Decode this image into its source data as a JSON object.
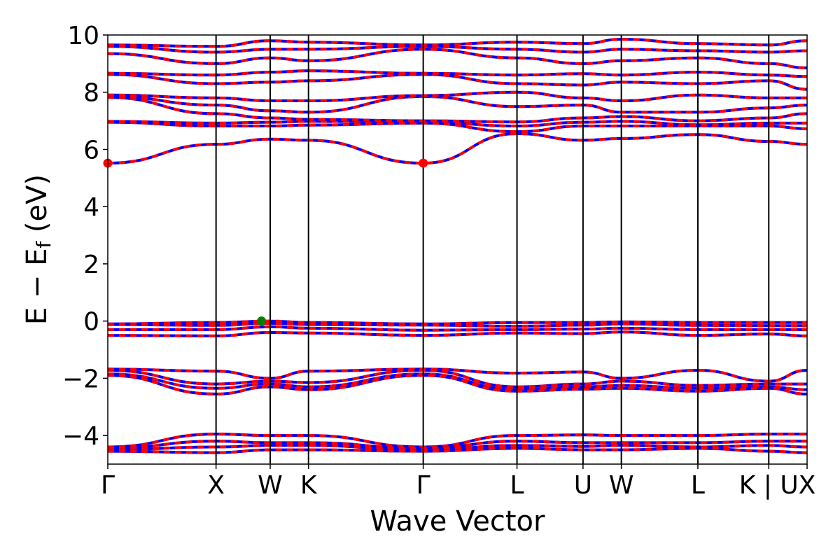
{
  "chart_data": {
    "type": "line",
    "xlabel": "Wave Vector",
    "ylabel": {
      "main": "E − E",
      "sub": "f",
      "unit": " (eV)"
    },
    "ylim": [
      -5,
      10
    ],
    "yticks": [
      {
        "value": 10,
        "label": "10"
      },
      {
        "value": 8,
        "label": "8"
      },
      {
        "value": 6,
        "label": "6"
      },
      {
        "value": 4,
        "label": "4"
      },
      {
        "value": 2,
        "label": "2"
      },
      {
        "value": 0,
        "label": "0"
      },
      {
        "value": -2,
        "label": "−2"
      },
      {
        "value": -4,
        "label": "−4"
      }
    ],
    "xlim": [
      0,
      6.46
    ],
    "kpoints": [
      {
        "label": "Γ",
        "x": 0.0
      },
      {
        "label": "X",
        "x": 1.0
      },
      {
        "label": "W",
        "x": 1.5
      },
      {
        "label": "K",
        "x": 1.854
      },
      {
        "label": "Γ",
        "x": 2.914
      },
      {
        "label": "L",
        "x": 3.78
      },
      {
        "label": "U",
        "x": 4.39
      },
      {
        "label": "W",
        "x": 4.744
      },
      {
        "label": "L",
        "x": 5.451
      },
      {
        "label": "K | U",
        "x": 6.106
      },
      {
        "label": "X",
        "x": 6.46
      }
    ],
    "grid": false,
    "colors": {
      "spin_up": "#0000ff",
      "spin_down": "#ff0000",
      "vbm": "#008000",
      "cbm": "#ff0000",
      "divider": "#000000"
    },
    "series": [
      {
        "x": [
          0,
          1,
          1.5,
          1.854,
          2.914,
          3.78,
          4.39,
          4.744,
          5.451,
          6.106,
          6.46
        ],
        "values": [
          5.52,
          6.18,
          6.36,
          6.32,
          5.52,
          6.55,
          6.32,
          6.38,
          6.52,
          6.28,
          6.18
        ]
      },
      {
        "x": [
          0,
          1,
          1.5,
          1.854,
          2.914,
          3.78,
          4.39,
          4.744,
          5.451,
          6.106,
          6.46
        ],
        "values": [
          6.95,
          6.82,
          6.82,
          6.85,
          6.92,
          6.62,
          6.82,
          6.82,
          6.82,
          6.82,
          6.72
        ]
      },
      {
        "x": [
          0,
          1,
          1.5,
          1.854,
          2.914,
          3.78,
          4.39,
          4.744,
          5.451,
          6.106,
          6.46
        ],
        "values": [
          6.98,
          6.92,
          6.95,
          6.98,
          6.96,
          6.82,
          6.95,
          6.98,
          6.86,
          6.92,
          6.92
        ]
      },
      {
        "x": [
          0,
          1,
          1.5,
          1.854,
          2.914,
          3.78,
          4.39,
          4.744,
          5.451,
          6.106,
          6.46
        ],
        "values": [
          7.82,
          7.25,
          7.1,
          7.05,
          7.0,
          6.96,
          7.1,
          7.15,
          7.0,
          7.1,
          7.25
        ]
      },
      {
        "x": [
          0,
          1,
          1.5,
          1.854,
          2.914,
          3.78,
          4.39,
          4.744,
          5.451,
          6.106,
          6.46
        ],
        "values": [
          7.86,
          7.55,
          7.35,
          7.3,
          7.85,
          7.5,
          7.55,
          7.3,
          7.3,
          7.45,
          7.55
        ]
      },
      {
        "x": [
          0,
          1,
          1.5,
          1.854,
          2.914,
          3.78,
          4.39,
          4.744,
          5.451,
          6.106,
          6.46
        ],
        "values": [
          7.9,
          7.8,
          7.7,
          7.7,
          7.88,
          8.0,
          7.8,
          7.7,
          7.9,
          7.8,
          7.8
        ]
      },
      {
        "x": [
          0,
          1,
          1.5,
          1.854,
          2.914,
          3.78,
          4.39,
          4.744,
          5.451,
          6.106,
          6.46
        ],
        "values": [
          8.62,
          8.3,
          8.35,
          8.4,
          8.62,
          8.3,
          8.25,
          8.35,
          8.3,
          8.4,
          8.1
        ]
      },
      {
        "x": [
          0,
          1,
          1.5,
          1.854,
          2.914,
          3.78,
          4.39,
          4.744,
          5.451,
          6.106,
          6.46
        ],
        "values": [
          8.66,
          8.6,
          8.7,
          8.75,
          8.66,
          8.6,
          8.65,
          8.6,
          8.7,
          8.6,
          8.55
        ]
      },
      {
        "x": [
          0,
          1,
          1.5,
          1.854,
          2.914,
          3.78,
          4.39,
          4.744,
          5.451,
          6.106,
          6.46
        ],
        "values": [
          9.35,
          9.0,
          9.2,
          9.1,
          9.5,
          9.2,
          9.0,
          9.1,
          9.2,
          9.0,
          8.85
        ]
      },
      {
        "x": [
          0,
          1,
          1.5,
          1.854,
          2.914,
          3.78,
          4.39,
          4.744,
          5.451,
          6.106,
          6.46
        ],
        "values": [
          9.6,
          9.4,
          9.5,
          9.5,
          9.6,
          9.5,
          9.4,
          9.5,
          9.45,
          9.4,
          9.45
        ]
      },
      {
        "x": [
          0,
          1,
          1.5,
          1.854,
          2.914,
          3.78,
          4.39,
          4.744,
          5.451,
          6.106,
          6.46
        ],
        "values": [
          9.65,
          9.6,
          9.8,
          9.75,
          9.65,
          9.75,
          9.7,
          9.85,
          9.7,
          9.65,
          9.8
        ]
      },
      {
        "x": [
          0,
          1,
          1.5,
          1.854,
          2.914,
          3.78,
          4.39,
          4.744,
          5.451,
          6.106,
          6.46
        ],
        "values": [
          -0.1,
          -0.05,
          0.0,
          -0.05,
          -0.1,
          -0.05,
          -0.05,
          -0.03,
          -0.05,
          -0.05,
          -0.05
        ]
      },
      {
        "x": [
          0,
          1,
          1.5,
          1.854,
          2.914,
          3.78,
          4.39,
          4.744,
          5.451,
          6.106,
          6.46
        ],
        "values": [
          -0.12,
          -0.15,
          -0.08,
          -0.12,
          -0.14,
          -0.18,
          -0.14,
          -0.1,
          -0.15,
          -0.16,
          -0.16
        ]
      },
      {
        "x": [
          0,
          1,
          1.5,
          1.854,
          2.914,
          3.78,
          4.39,
          4.744,
          5.451,
          6.106,
          6.46
        ],
        "values": [
          -0.3,
          -0.3,
          -0.2,
          -0.25,
          -0.32,
          -0.3,
          -0.28,
          -0.25,
          -0.3,
          -0.3,
          -0.3
        ]
      },
      {
        "x": [
          0,
          1,
          1.5,
          1.854,
          2.914,
          3.78,
          4.39,
          4.744,
          5.451,
          6.106,
          6.46
        ],
        "values": [
          -0.5,
          -0.52,
          -0.4,
          -0.42,
          -0.5,
          -0.42,
          -0.44,
          -0.38,
          -0.5,
          -0.45,
          -0.52
        ]
      },
      {
        "x": [
          0,
          1,
          1.5,
          1.854,
          2.914,
          3.78,
          4.39,
          4.744,
          5.451,
          6.106,
          6.46
        ],
        "values": [
          -1.68,
          -1.75,
          -2.0,
          -1.75,
          -1.68,
          -1.82,
          -1.78,
          -2.0,
          -1.72,
          -2.1,
          -1.72
        ]
      },
      {
        "x": [
          0,
          1,
          1.5,
          1.854,
          2.914,
          3.78,
          4.39,
          4.744,
          5.451,
          6.106,
          6.46
        ],
        "values": [
          -1.72,
          -2.2,
          -2.1,
          -2.15,
          -1.72,
          -2.3,
          -2.2,
          -2.1,
          -2.25,
          -2.2,
          -2.2
        ]
      },
      {
        "x": [
          0,
          1,
          1.5,
          1.854,
          2.914,
          3.78,
          4.39,
          4.744,
          5.451,
          6.106,
          6.46
        ],
        "values": [
          -1.85,
          -2.35,
          -2.2,
          -2.3,
          -1.85,
          -2.4,
          -2.3,
          -2.25,
          -2.35,
          -2.3,
          -2.4
        ]
      },
      {
        "x": [
          0,
          1,
          1.5,
          1.854,
          2.914,
          3.78,
          4.39,
          4.744,
          5.451,
          6.106,
          6.46
        ],
        "values": [
          -1.9,
          -2.55,
          -2.3,
          -2.4,
          -1.9,
          -2.45,
          -2.38,
          -2.35,
          -2.45,
          -2.35,
          -2.55
        ]
      },
      {
        "x": [
          0,
          1,
          1.5,
          1.854,
          2.914,
          3.78,
          4.39,
          4.744,
          5.451,
          6.106,
          6.46
        ],
        "values": [
          -4.4,
          -3.95,
          -4.0,
          -4.0,
          -4.4,
          -4.0,
          -3.98,
          -4.0,
          -4.0,
          -3.95,
          -3.95
        ]
      },
      {
        "x": [
          0,
          1,
          1.5,
          1.854,
          2.914,
          3.78,
          4.39,
          4.744,
          5.451,
          6.106,
          6.46
        ],
        "values": [
          -4.45,
          -4.2,
          -4.25,
          -4.25,
          -4.45,
          -4.2,
          -4.25,
          -4.25,
          -4.25,
          -4.2,
          -4.2
        ]
      },
      {
        "x": [
          0,
          1,
          1.5,
          1.854,
          2.914,
          3.78,
          4.39,
          4.744,
          5.451,
          6.106,
          6.46
        ],
        "values": [
          -4.5,
          -4.4,
          -4.35,
          -4.35,
          -4.5,
          -4.35,
          -4.38,
          -4.35,
          -4.4,
          -4.35,
          -4.4
        ]
      },
      {
        "x": [
          0,
          1,
          1.5,
          1.854,
          2.914,
          3.78,
          4.39,
          4.744,
          5.451,
          6.106,
          6.46
        ],
        "values": [
          -4.55,
          -4.6,
          -4.5,
          -4.5,
          -4.55,
          -4.45,
          -4.5,
          -4.5,
          -4.45,
          -4.55,
          -4.6
        ]
      }
    ],
    "markers": [
      {
        "kind": "vbm",
        "x": 1.42,
        "y": 0.0
      },
      {
        "kind": "cbm",
        "x": 0.0,
        "y": 5.52
      },
      {
        "kind": "cbm",
        "x": 2.914,
        "y": 5.52
      }
    ]
  }
}
